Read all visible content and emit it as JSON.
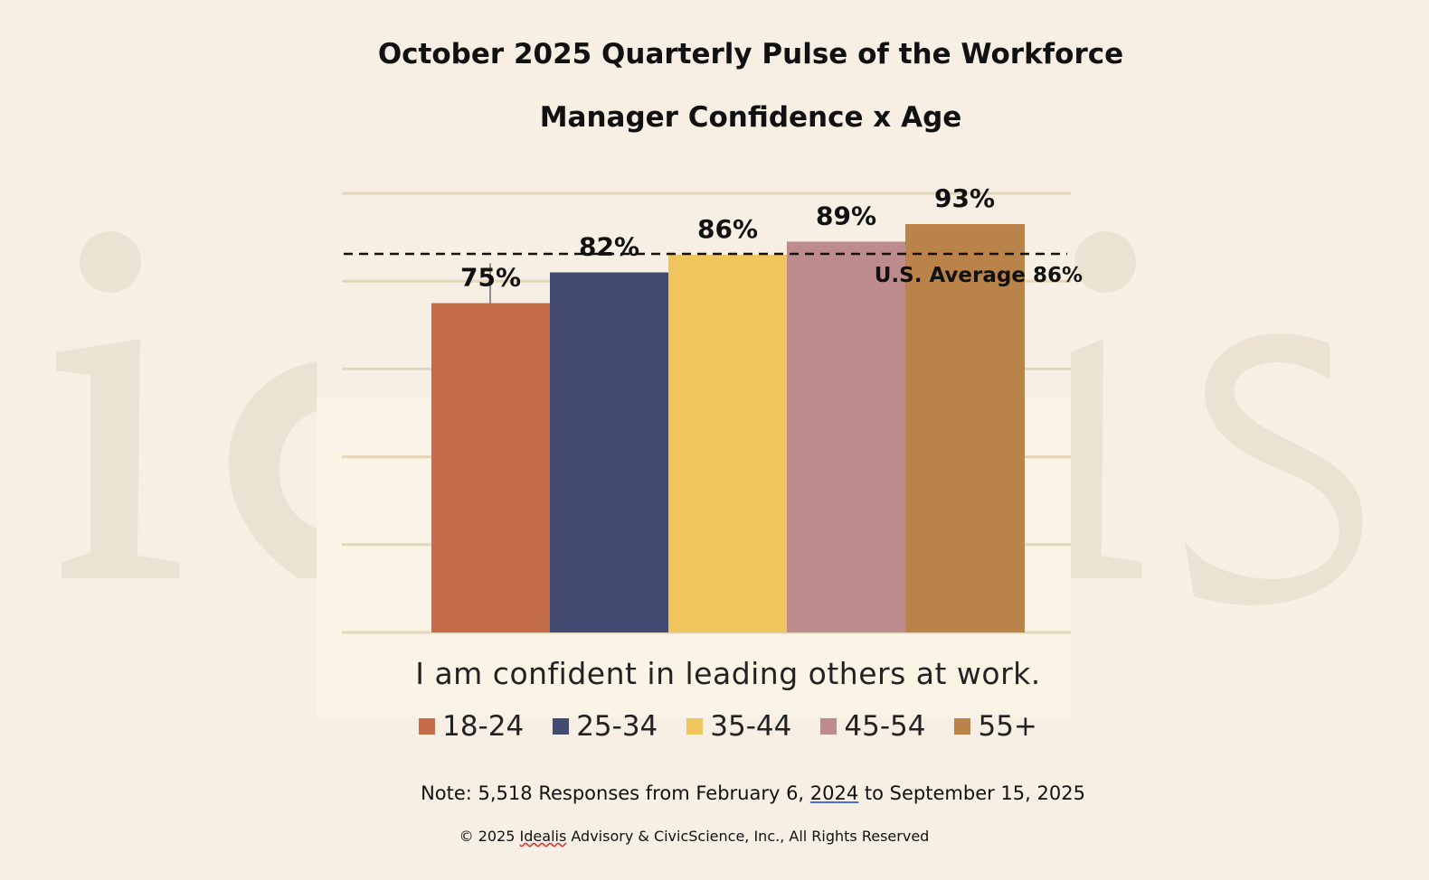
{
  "header": {
    "title": "October 2025 Quarterly Pulse of the Workforce",
    "subtitle": "Manager Confidence x Age"
  },
  "chart_data": {
    "type": "bar",
    "title": "Manager Confidence x Age",
    "xlabel": "I am confident in leading others at work.",
    "ylabel": "",
    "ylim": [
      0,
      100
    ],
    "grid": true,
    "legend_position": "bottom",
    "categories": [
      "18-24",
      "25-34",
      "35-44",
      "45-54",
      "55+"
    ],
    "values": [
      75,
      82,
      86,
      89,
      93
    ],
    "data_labels": [
      "75%",
      "82%",
      "86%",
      "89%",
      "93%"
    ],
    "colors": [
      "#c46c48",
      "#434b73",
      "#f0c55d",
      "#bd8b8b",
      "#b98349"
    ],
    "reference_line": {
      "value": 86,
      "label": "U.S. Average 86%"
    }
  },
  "footer": {
    "note_prefix": "Note: 5,518 Responses from February 6, ",
    "note_year": "2024",
    "note_suffix": " to September 15, 2025",
    "copyright_prefix": "© 2025 ",
    "copyright_brand": "Idealis",
    "copyright_suffix": " Advisory & CivicScience, Inc.,  All Rights Reserved"
  }
}
